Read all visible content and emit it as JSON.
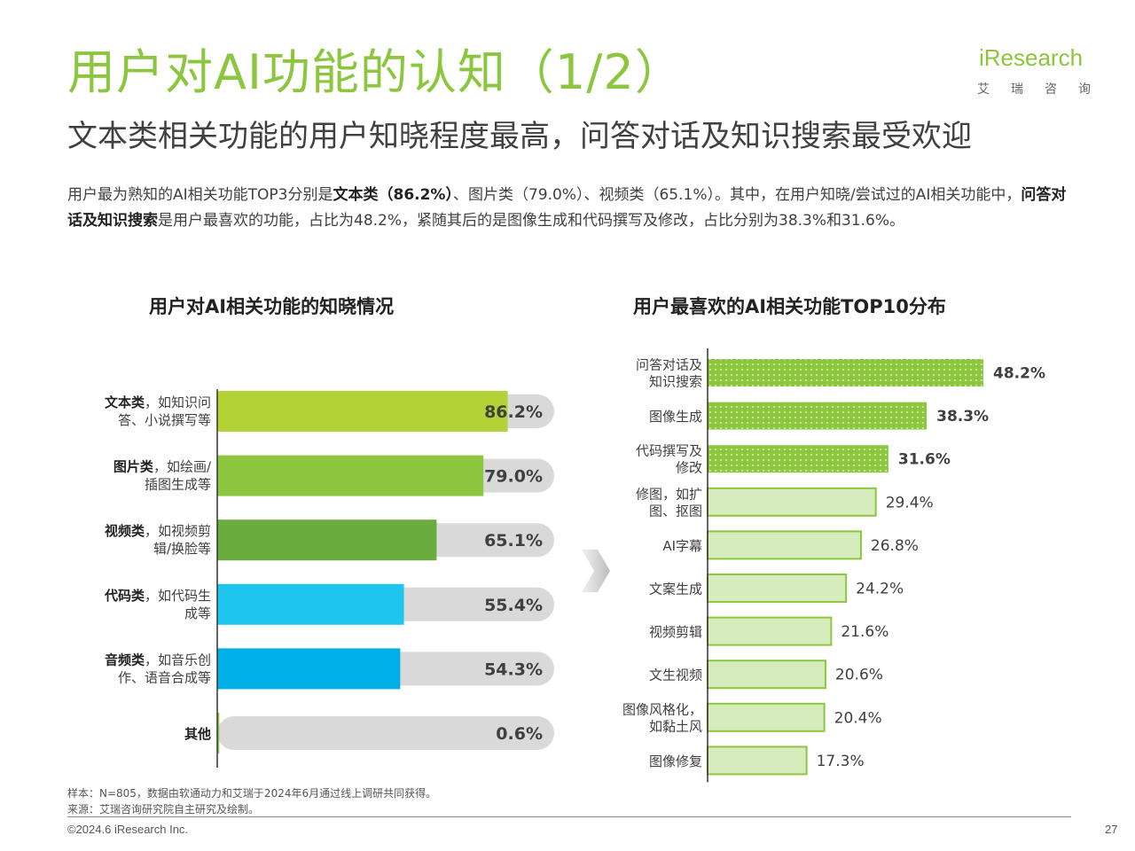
{
  "header": {
    "title": "用户对AI功能的认知（1/2）",
    "subtitle": "文本类相关功能的用户知晓程度最高，问答对话及知识搜索最受欢迎",
    "logo_text": "iResearch",
    "logo_cn": "艾瑞咨询"
  },
  "description": {
    "p1": "用户最为熟知的AI相关功能TOP3分别是",
    "b1": "文本类（86.2%）",
    "p2": "、图片类（79.0%）、视频类（65.1%）。其中，在用户知晓/尝试过的AI相关功能中，",
    "b2": "问答对话及知识搜索",
    "p3": "是用户最喜欢的功能，占比为48.2%，紧随其后的是图像生成和代码撰写及修改，占比分别为38.3%和31.6%。"
  },
  "chart_data": [
    {
      "type": "bar",
      "orientation": "horizontal",
      "title": "用户对AI相关功能的知晓情况",
      "categories": [
        {
          "bold": "文本类",
          "rest": "，如知识问",
          "line2": "答、小说撰写等"
        },
        {
          "bold": "图片类",
          "rest": "，如绘画/",
          "line2": "插图生成等"
        },
        {
          "bold": "视频类",
          "rest": "，如视频剪",
          "line2": "辑/换脸等"
        },
        {
          "bold": "代码类",
          "rest": "，如代码生",
          "line2": "成等"
        },
        {
          "bold": "音频类",
          "rest": "，如音乐创",
          "line2": "作、语音合成等"
        },
        {
          "bold": "其他",
          "rest": "",
          "line2": ""
        }
      ],
      "values": [
        86.2,
        79.0,
        65.1,
        55.4,
        54.3,
        0.6
      ],
      "value_labels": [
        "86.2%",
        "79.0%",
        "65.1%",
        "55.4%",
        "54.3%",
        "0.6%"
      ],
      "colors": [
        "#b2d235",
        "#8dc63f",
        "#6aac3e",
        "#1ec6ef",
        "#00aee8",
        "#8dc63f"
      ],
      "track_color": "#d9d9d9",
      "xlim": [
        0,
        100
      ]
    },
    {
      "type": "bar",
      "orientation": "horizontal",
      "title": "用户最喜欢的AI相关功能TOP10分布",
      "categories": [
        [
          "问答对话及",
          "知识搜索"
        ],
        [
          "图像生成"
        ],
        [
          "代码撰写及",
          "修改"
        ],
        [
          "修图，如扩",
          "图、抠图"
        ],
        [
          "AI字幕"
        ],
        [
          "文案生成"
        ],
        [
          "视频剪辑"
        ],
        [
          "文生视频"
        ],
        [
          "图像风格化，",
          "如黏土风"
        ],
        [
          "图像修复"
        ]
      ],
      "values": [
        48.2,
        38.3,
        31.6,
        29.4,
        26.8,
        24.2,
        21.6,
        20.6,
        20.4,
        17.3
      ],
      "value_labels": [
        "48.2%",
        "38.3%",
        "31.6%",
        "29.4%",
        "26.8%",
        "24.2%",
        "21.6%",
        "20.6%",
        "20.4%",
        "17.3%"
      ],
      "highlight_top": 3,
      "colors": {
        "highlight": "#8dc63f",
        "normal_fill": "#d6ecbd",
        "normal_stroke": "#8dc63f"
      },
      "xlim": [
        0,
        50
      ]
    }
  ],
  "footer": {
    "sample": "样本：N=805，数据由软通动力和艾瑞于2024年6月通过线上调研共同获得。",
    "source": "来源：艾瑞咨询研究院自主研究及绘制。",
    "copyright": "©2024.6 iResearch Inc.",
    "page": "27"
  }
}
